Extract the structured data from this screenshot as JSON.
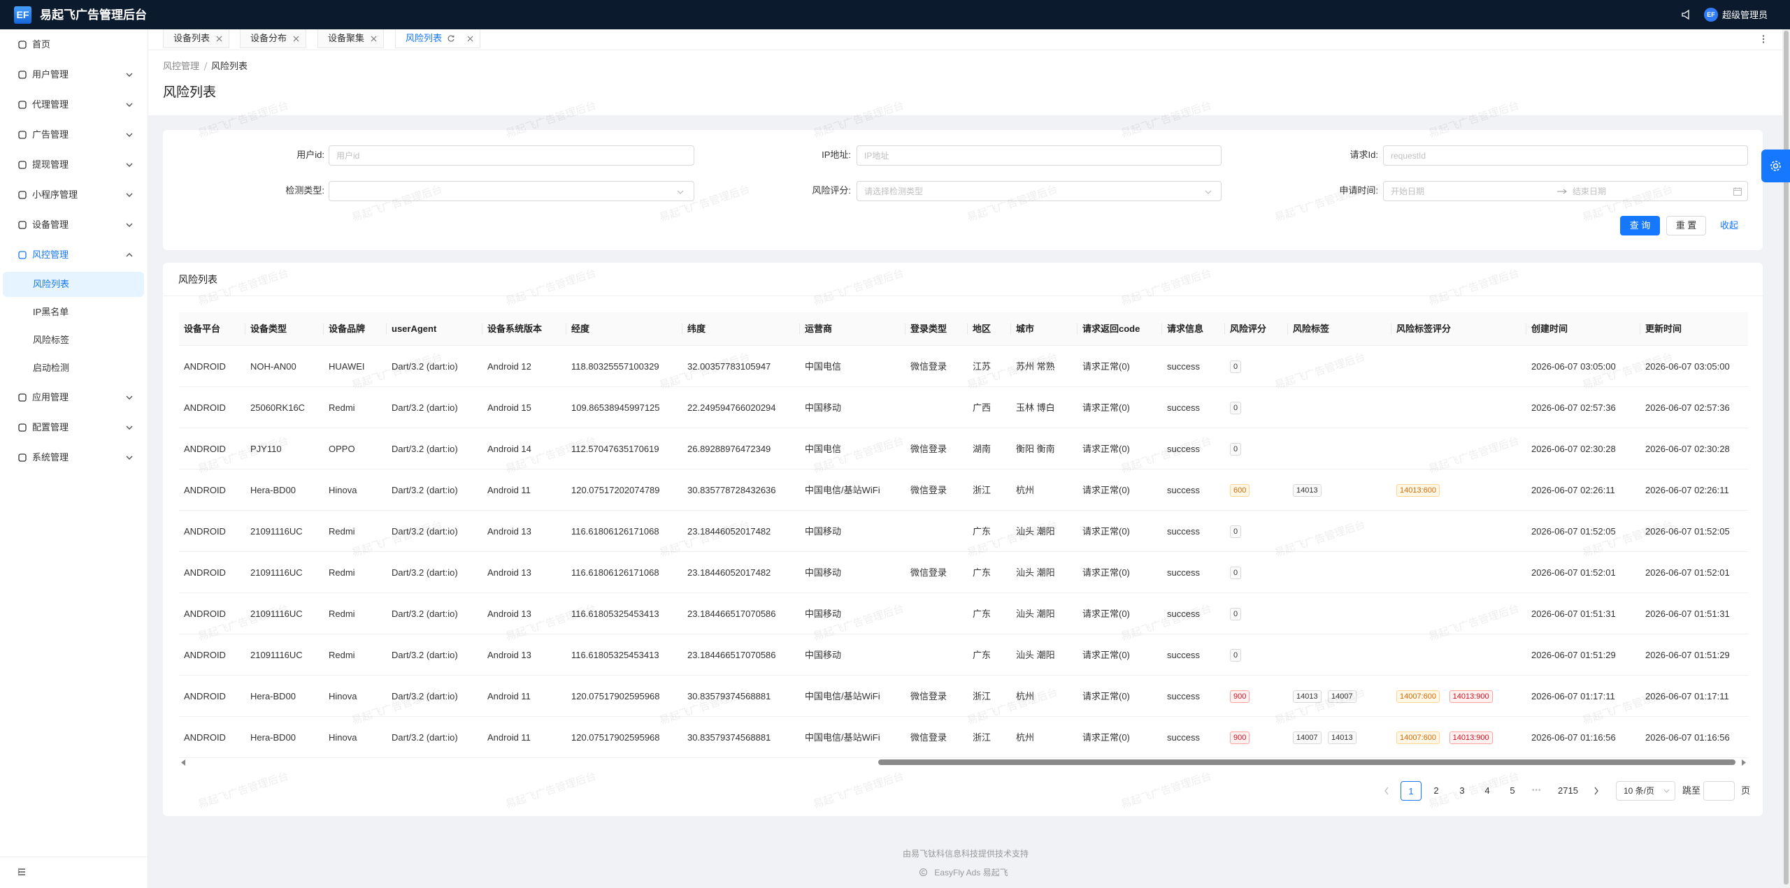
{
  "header": {
    "logo": "EF",
    "title": "易起飞广告管理后台",
    "avatar": "EF",
    "user": "超级管理员"
  },
  "menu": [
    {
      "label": "首页"
    },
    {
      "label": "用户管理",
      "expandable": true
    },
    {
      "label": "代理管理",
      "expandable": true
    },
    {
      "label": "广告管理",
      "expandable": true
    },
    {
      "label": "提现管理",
      "expandable": true
    },
    {
      "label": "小程序管理",
      "expandable": true
    },
    {
      "label": "设备管理",
      "expandable": true
    },
    {
      "label": "风控管理",
      "expandable": true,
      "open": true,
      "children": [
        {
          "label": "风险列表",
          "active": true
        },
        {
          "label": "IP黑名单"
        },
        {
          "label": "风险标签"
        },
        {
          "label": "启动检测"
        }
      ]
    },
    {
      "label": "应用管理",
      "expandable": true
    },
    {
      "label": "配置管理",
      "expandable": true
    },
    {
      "label": "系统管理",
      "expandable": true
    }
  ],
  "tabs": {
    "items": [
      "设备列表",
      "设备分布",
      "设备聚集",
      "风险列表"
    ],
    "active": 3
  },
  "breadcrumb": [
    "风控管理",
    "风险列表"
  ],
  "page_title": "风险列表",
  "watermark": "易起飞广告管理后台",
  "filters": [
    {
      "label": "用户id:",
      "placeholder": "用户id"
    },
    {
      "label": "IP地址:",
      "placeholder": "IP地址"
    },
    {
      "label": "请求Id:",
      "placeholder": "requestId"
    },
    {
      "label": "检测类型:",
      "placeholder": null
    },
    {
      "label": "风险评分:",
      "placeholder": "请选择检测类型"
    },
    {
      "label": "申请时间:",
      "start": "开始日期",
      "end": "结束日期"
    }
  ],
  "buttons": {
    "search": "查 询",
    "reset": "重 置",
    "collapse": "收起"
  },
  "table": {
    "title": "风险列表",
    "columns": [
      "设备平台",
      "设备类型",
      "设备品牌",
      "userAgent",
      "设备系统版本",
      "经度",
      "纬度",
      "运营商",
      "登录类型",
      "地区",
      "城市",
      "请求返回code",
      "请求信息",
      "风险评分",
      "风险标签",
      "风险标签评分",
      "创建时间",
      "更新时间"
    ],
    "rows": [
      [
        "ANDROID",
        "NOH-AN00",
        "HUAWEI",
        "Dart/3.2 (dart:io)",
        "Android 12",
        "118.80325557100329",
        "32.00357783105947",
        "中国电信",
        "微信登录",
        "江苏",
        "苏州 常熟",
        "请求正常(0)",
        "success",
        [
          {
            "text": "0",
            "tone": "default"
          }
        ],
        [],
        [],
        "2026-06-07 03:05:00",
        "2026-06-07 03:05:00"
      ],
      [
        "ANDROID",
        "25060RK16C",
        "Redmi",
        "Dart/3.2 (dart:io)",
        "Android 15",
        "109.86538945997125",
        "22.249594766020294",
        "中国移动",
        null,
        "广西",
        "玉林 博白",
        "请求正常(0)",
        "success",
        [
          {
            "text": "0",
            "tone": "default"
          }
        ],
        [],
        [],
        "2026-06-07 02:57:36",
        "2026-06-07 02:57:36"
      ],
      [
        "ANDROID",
        "PJY110",
        "OPPO",
        "Dart/3.2 (dart:io)",
        "Android 14",
        "112.57047635170619",
        "26.89288976472349",
        "中国电信",
        "微信登录",
        "湖南",
        "衡阳 衡南",
        "请求正常(0)",
        "success",
        [
          {
            "text": "0",
            "tone": "default"
          }
        ],
        [],
        [],
        "2026-06-07 02:30:28",
        "2026-06-07 02:30:28"
      ],
      [
        "ANDROID",
        "Hera-BD00",
        "Hinova",
        "Dart/3.2 (dart:io)",
        "Android 11",
        "120.07517202074789",
        "30.835778728432636",
        "中国电信/基站WiFi",
        "微信登录",
        "浙江",
        "杭州",
        "请求正常(0)",
        "success",
        [
          {
            "text": "600",
            "tone": "warning"
          }
        ],
        [
          {
            "text": "14013",
            "tone": "default"
          }
        ],
        [
          {
            "text": "14013:600",
            "tone": "warning"
          }
        ],
        "2026-06-07 02:26:11",
        "2026-06-07 02:26:11"
      ],
      [
        "ANDROID",
        "21091116UC",
        "Redmi",
        "Dart/3.2 (dart:io)",
        "Android 13",
        "116.61806126171068",
        "23.18446052017482",
        "中国移动",
        null,
        "广东",
        "汕头 潮阳",
        "请求正常(0)",
        "success",
        [
          {
            "text": "0",
            "tone": "default"
          }
        ],
        [],
        [],
        "2026-06-07 01:52:05",
        "2026-06-07 01:52:05"
      ],
      [
        "ANDROID",
        "21091116UC",
        "Redmi",
        "Dart/3.2 (dart:io)",
        "Android 13",
        "116.61806126171068",
        "23.18446052017482",
        "中国移动",
        "微信登录",
        "广东",
        "汕头 潮阳",
        "请求正常(0)",
        "success",
        [
          {
            "text": "0",
            "tone": "default"
          }
        ],
        [],
        [],
        "2026-06-07 01:52:01",
        "2026-06-07 01:52:01"
      ],
      [
        "ANDROID",
        "21091116UC",
        "Redmi",
        "Dart/3.2 (dart:io)",
        "Android 13",
        "116.61805325453413",
        "23.184466517070586",
        "中国移动",
        null,
        "广东",
        "汕头 潮阳",
        "请求正常(0)",
        "success",
        [
          {
            "text": "0",
            "tone": "default"
          }
        ],
        [],
        [],
        "2026-06-07 01:51:31",
        "2026-06-07 01:51:31"
      ],
      [
        "ANDROID",
        "21091116UC",
        "Redmi",
        "Dart/3.2 (dart:io)",
        "Android 13",
        "116.61805325453413",
        "23.184466517070586",
        "中国移动",
        null,
        "广东",
        "汕头 潮阳",
        "请求正常(0)",
        "success",
        [
          {
            "text": "0",
            "tone": "default"
          }
        ],
        [],
        [],
        "2026-06-07 01:51:29",
        "2026-06-07 01:51:29"
      ],
      [
        "ANDROID",
        "Hera-BD00",
        "Hinova",
        "Dart/3.2 (dart:io)",
        "Android 11",
        "120.07517902595968",
        "30.83579374568881",
        "中国电信/基站WiFi",
        "微信登录",
        "浙江",
        "杭州",
        "请求正常(0)",
        "success",
        [
          {
            "text": "900",
            "tone": "error"
          }
        ],
        [
          {
            "text": "14013",
            "tone": "default"
          },
          {
            "text": "14007",
            "tone": "default"
          }
        ],
        [
          {
            "text": "14007:600",
            "tone": "warning"
          },
          {
            "text": "14013:900",
            "tone": "error"
          }
        ],
        "2026-06-07 01:17:11",
        "2026-06-07 01:17:11"
      ],
      [
        "ANDROID",
        "Hera-BD00",
        "Hinova",
        "Dart/3.2 (dart:io)",
        "Android 11",
        "120.07517902595968",
        "30.83579374568881",
        "中国电信/基站WiFi",
        "微信登录",
        "浙江",
        "杭州",
        "请求正常(0)",
        "success",
        [
          {
            "text": "900",
            "tone": "error"
          }
        ],
        [
          {
            "text": "14007",
            "tone": "default"
          },
          {
            "text": "14013",
            "tone": "default"
          }
        ],
        [
          {
            "text": "14007:600",
            "tone": "warning"
          },
          {
            "text": "14013:900",
            "tone": "error"
          }
        ],
        "2026-06-07 01:16:56",
        "2026-06-07 01:16:56"
      ]
    ]
  },
  "pagination": {
    "pages": [
      "1",
      "2",
      "3",
      "4",
      "5"
    ],
    "current": 0,
    "ellipsis": "•••",
    "last": "2715",
    "page_size": "10 条/页",
    "jump_label": "跳至",
    "jump_suffix": "页"
  },
  "footer": {
    "support": "由易飞钛科信息科技提供技术支持",
    "brand": "EasyFly Ads 易起飞"
  }
}
